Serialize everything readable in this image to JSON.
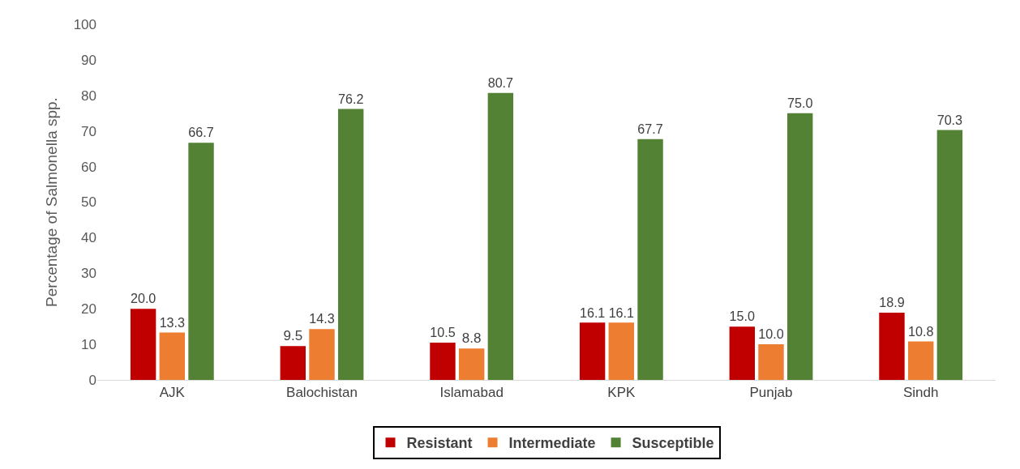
{
  "chart_data": {
    "type": "bar",
    "ylabel": "Percentage of Salmonella spp.",
    "categories": [
      "AJK",
      "Balochistan",
      "Islamabad",
      "KPK",
      "Punjab",
      "Sindh"
    ],
    "series": [
      {
        "name": "Resistant",
        "color": "#c00000",
        "values": [
          20.0,
          9.5,
          10.5,
          16.1,
          15.0,
          18.9
        ],
        "value_labels": [
          "20.0",
          "9.5",
          "10.5",
          "16.1",
          "15.0",
          "18.9"
        ]
      },
      {
        "name": "Intermediate",
        "color": "#ed7d31",
        "values": [
          13.3,
          14.3,
          8.8,
          16.1,
          10.0,
          10.8
        ],
        "value_labels": [
          "13.3",
          "14.3",
          "8.8",
          "16.1",
          "10.0",
          "10.8"
        ]
      },
      {
        "name": "Susceptible",
        "color": "#548235",
        "values": [
          66.7,
          76.2,
          80.7,
          67.7,
          75.0,
          70.3
        ],
        "value_labels": [
          "66.7",
          "76.2",
          "80.7",
          "67.7",
          "75.0",
          "70.3"
        ]
      }
    ],
    "ylim": [
      0,
      100
    ],
    "yticks": [
      0,
      10,
      20,
      30,
      40,
      50,
      60,
      70,
      80,
      90,
      100
    ],
    "grid": false,
    "legend": "bottom"
  }
}
